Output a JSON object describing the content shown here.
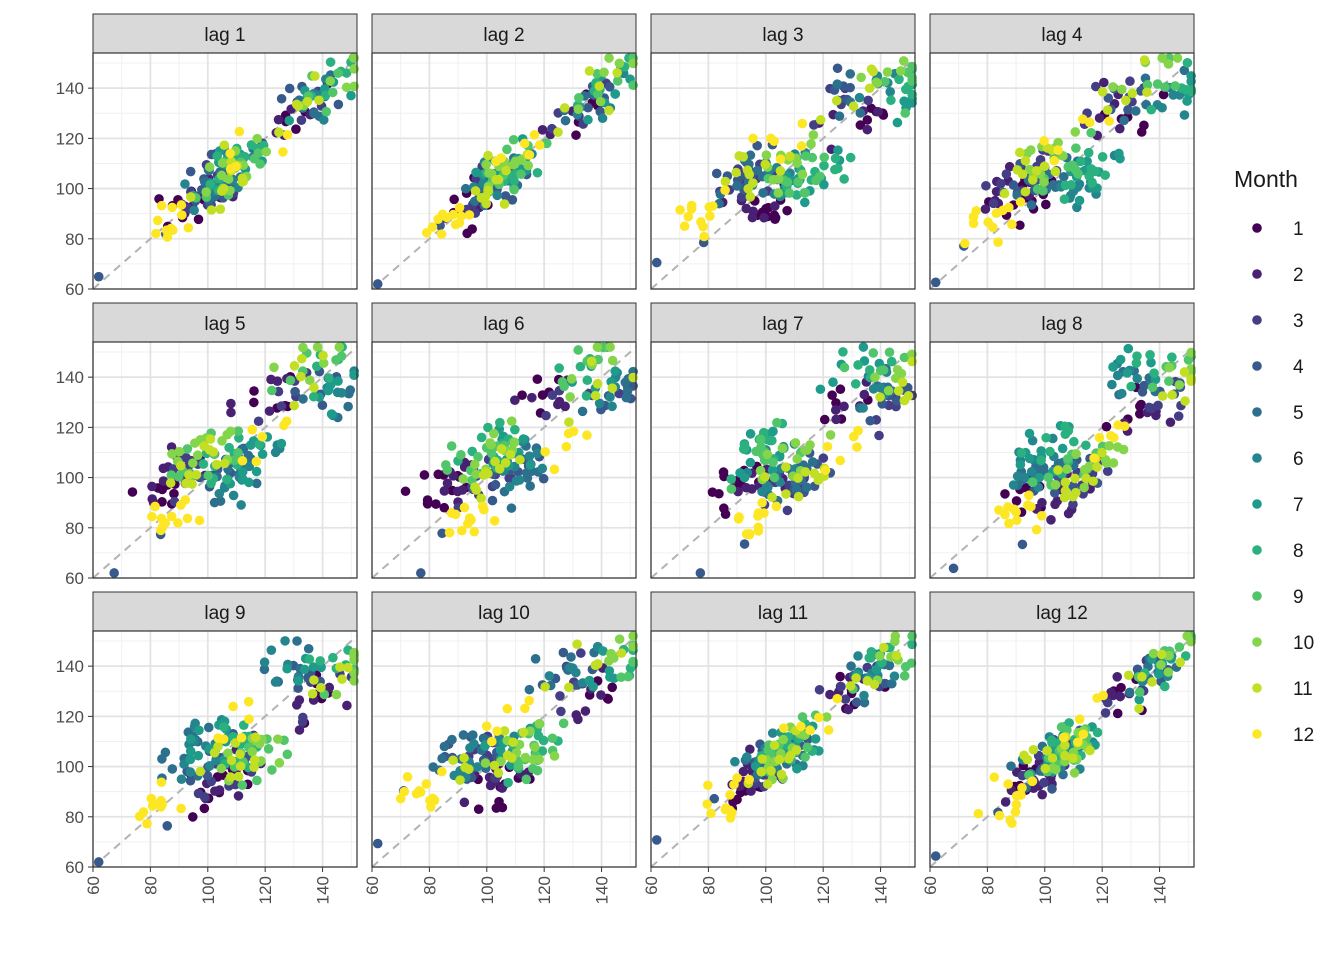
{
  "chart_data": {
    "type": "scatter",
    "facet_titles": [
      "lag 1",
      "lag 2",
      "lag 3",
      "lag 4",
      "lag 5",
      "lag 6",
      "lag 7",
      "lag 8",
      "lag 9",
      "lag 10",
      "lag 11",
      "lag 12"
    ],
    "xlim": [
      60,
      152
    ],
    "ylim": [
      60,
      154
    ],
    "x_ticks": [
      "60",
      "80",
      "100",
      "120",
      "140"
    ],
    "y_ticks": [
      "60",
      "80",
      "100",
      "120",
      "140"
    ],
    "grid": true,
    "reference_line": "y = x (dashed, grey)",
    "legend": {
      "title": "Month",
      "position": "right",
      "labels": [
        "1",
        "2",
        "3",
        "4",
        "5",
        "6",
        "7",
        "8",
        "9",
        "10",
        "11",
        "12"
      ],
      "colors": [
        "#440154",
        "#482173",
        "#433E85",
        "#38598C",
        "#2D708E",
        "#25858E",
        "#1E9B8A",
        "#2BB07F",
        "#51C56A",
        "#85D54A",
        "#C2DF23",
        "#FDE725"
      ]
    },
    "series_by_month": [
      {
        "month": "1",
        "values": [
          90,
          89,
          88,
          92,
          95,
          98,
          100,
          96,
          94,
          99,
          97,
          93,
          128,
          131,
          136,
          129,
          126,
          132
        ]
      },
      {
        "month": "2",
        "values": [
          93,
          95,
          92,
          97,
          99,
          101,
          103,
          100,
          98,
          104,
          96,
          94,
          127,
          125,
          130,
          134,
          122,
          129
        ]
      },
      {
        "month": "3",
        "values": [
          95,
          97,
          99,
          101,
          103,
          105,
          100,
          98,
          102,
          106,
          104,
          108,
          128,
          133,
          136,
          138,
          125,
          131
        ]
      },
      {
        "month": "4",
        "values": [
          82,
          98,
          100,
          102,
          104,
          101,
          106,
          108,
          110,
          97,
          99,
          64,
          132,
          135,
          137,
          134,
          138,
          140
        ]
      },
      {
        "month": "5",
        "values": [
          94,
          100,
          102,
          104,
          106,
          108,
          103,
          101,
          99,
          97,
          105,
          109,
          130,
          133,
          135,
          137,
          139,
          141
        ]
      },
      {
        "month": "6",
        "values": [
          96,
          101,
          103,
          105,
          107,
          109,
          111,
          104,
          100,
          98,
          106,
          110,
          134,
          136,
          138,
          141,
          143,
          139
        ]
      },
      {
        "month": "7",
        "values": [
          104,
          106,
          108,
          110,
          112,
          105,
          103,
          101,
          107,
          109,
          113,
          111,
          133,
          137,
          140,
          143,
          145,
          141
        ]
      },
      {
        "month": "8",
        "values": [
          105,
          107,
          109,
          111,
          113,
          115,
          103,
          104,
          108,
          110,
          112,
          106,
          137,
          140,
          143,
          145,
          147,
          142
        ]
      },
      {
        "month": "9",
        "values": [
          100,
          103,
          105,
          107,
          109,
          111,
          113,
          115,
          101,
          104,
          106,
          108,
          136,
          139,
          142,
          145,
          148,
          150
        ]
      },
      {
        "month": "10",
        "values": [
          101,
          104,
          106,
          108,
          110,
          112,
          114,
          116,
          102,
          105,
          107,
          109,
          137,
          141,
          144,
          147,
          149,
          151
        ]
      },
      {
        "month": "11",
        "values": [
          97,
          99,
          101,
          103,
          105,
          107,
          109,
          111,
          98,
          100,
          104,
          106,
          129,
          132,
          136,
          139,
          141,
          143
        ]
      },
      {
        "month": "12",
        "values": [
          83,
          84,
          85,
          86,
          87,
          88,
          89,
          90,
          84,
          85,
          86,
          88,
          110,
          112,
          115,
          118,
          121,
          124
        ]
      }
    ]
  }
}
